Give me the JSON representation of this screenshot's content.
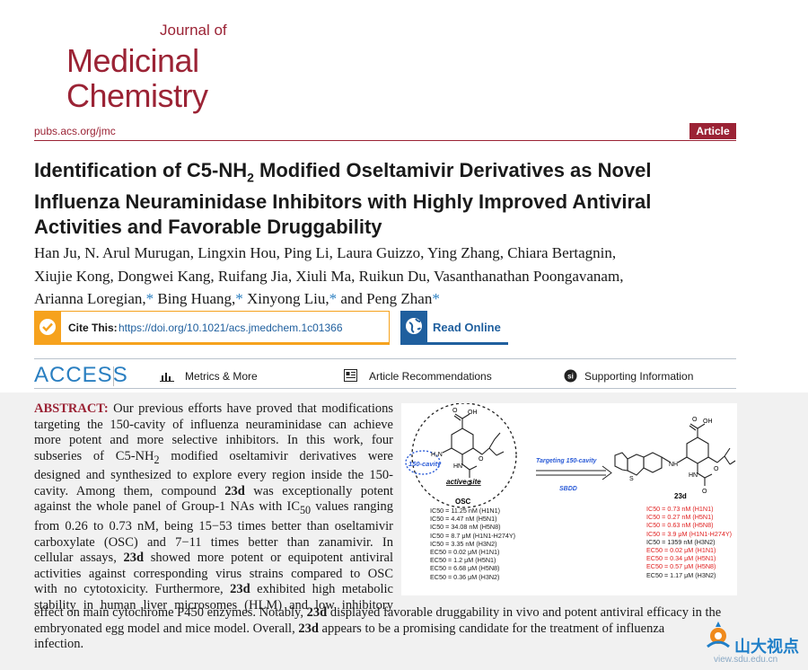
{
  "journal": {
    "line1": "Journal of",
    "line2": "Medicinal",
    "line3": "Chemistry",
    "url": "pubs.acs.org/jmc",
    "type_tag": "Article"
  },
  "title": {
    "line1_a": "Identification of C5-NH",
    "line1_sub": "2",
    "line1_b": " Modified Oseltamivir Derivatives as Novel",
    "line2": "Influenza Neuraminidase Inhibitors with Highly Improved Antiviral",
    "line3": "Activities and Favorable Druggability"
  },
  "authors": {
    "line1": "Han Ju, N. Arul Murugan, Lingxin Hou, Ping Li, Laura Guizzo, Ying Zhang, Chiara Bertagnin,",
    "line2": "Xiujie Kong, Dongwei Kang, Ruifang Jia, Xiuli Ma, Ruikun Du, Vasanthanathan Poongavanam,",
    "line3_a": "Arianna Loregian,",
    "line3_b": " Bing Huang,",
    "line3_c": " Xinyong Liu,",
    "line3_d": " and Peng Zhan",
    "star": "*"
  },
  "cite": {
    "label": "Cite This:",
    "doi": "https://doi.org/10.1021/acs.jmedchem.1c01366"
  },
  "read_online": {
    "label": "Read Online"
  },
  "access_bar": {
    "access": "ACCESS",
    "metrics": "Metrics & More",
    "recommendations": "Article Recommendations",
    "supporting": "Supporting Information"
  },
  "abstract": {
    "label": "ABSTRACT:",
    "lines": [
      " Our previous efforts have proved that modifications",
      "targeting the 150-cavity of influenza neuraminidase can achieve",
      "more potent and more selective inhibitors. In this work, four"
    ],
    "l4_a": "subseries of C5-NH",
    "l4_sub": "2",
    "l4_b": " modified oseltamivir derivatives were",
    "l5": "designed and synthesized to explore every region inside the 150-",
    "l6_a": "cavity. Among them, compound ",
    "l6_b": "23d",
    "l6_c": " was exceptionally potent",
    "l7_a": "against the whole panel of Group-1 NAs with IC",
    "l7_sub": "50",
    "l7_b": " values ranging",
    "l8": "from 0.26 to 0.73 nM, being 15−53 times better than oseltamivir",
    "l9": "carboxylate (OSC) and 7−11 times better than zanamivir. In",
    "l10_a": "cellular assays, ",
    "l10_b": "23d",
    "l10_c": " showed more potent or equipotent antiviral",
    "l11": "activities against corresponding virus strains compared to OSC",
    "l12_a": "with no cytotoxicity. Furthermore, ",
    "l12_b": "23d",
    "l12_c": " exhibited high metabolic",
    "l13": "stability in human liver microsomes (HLM) and low inhibitory",
    "tail1_a": "effect on main cytochrome P450 enzymes. Notably, ",
    "tail1_b": "23d",
    "tail1_c": " displayed favorable druggability in vivo and potent antiviral efficacy in the",
    "tail2_a": "embryonated egg model and mice model. Overall, ",
    "tail2_b": "23d",
    "tail2_c": " appears to be a promising candidate for the treatment of influenza",
    "tail3": "infection."
  },
  "toc": {
    "osc_label": "OSC",
    "cpd_label": "23d",
    "active_site": "active site",
    "cavity": "150-cavity",
    "arrow_top": "Targeting 150-cavity",
    "arrow_bottom": "SBDD",
    "atom_h2n": "H₂N",
    "atom_oh": "OH",
    "atom_o": "O",
    "atom_hn": "HN",
    "atom_nh": "NH",
    "atom_s": "S",
    "osc_values": [
      "IC50 = 11.25 nM (H1N1)",
      "IC50 = 4.47 nM (H5N1)",
      "IC50 = 34.08 nM (H5N8)",
      "IC50 = 8.7 μM (H1N1-H274Y)",
      "IC50 = 3.35 nM (H3N2)",
      "EC50 = 0.02 μM (H1N1)",
      "EC50 = 1.2 μM (H5N1)",
      "EC50 = 6.68 μM (H5N8)",
      "EC50 = 0.36 μM (H3N2)"
    ],
    "cpd_values": [
      "IC50 = 0.73 nM (H1N1)",
      "IC50 = 0.27 nM (H5N1)",
      "IC50 = 0.63 nM (H5N8)",
      "IC50 = 3.9 μM (H1N1-H274Y)",
      "IC50 = 1359 nM (H3N2)",
      "EC50 = 0.02 μM (H1N1)",
      "EC50 = 0.34 μM (H5N1)",
      "EC50 = 0.57 μM (H5N8)",
      "EC50 = 1.17 μM (H3N2)"
    ],
    "cpd_red": [
      true,
      true,
      true,
      true,
      false,
      true,
      true,
      true,
      false
    ]
  },
  "watermark": {
    "text": "山大视点",
    "url": "view.sdu.edu.cn"
  },
  "colors": {
    "brand": "#9b2335",
    "cite_orange": "#f6a21d",
    "link_blue": "#1f5f9e",
    "highlight_red": "#e02020"
  }
}
